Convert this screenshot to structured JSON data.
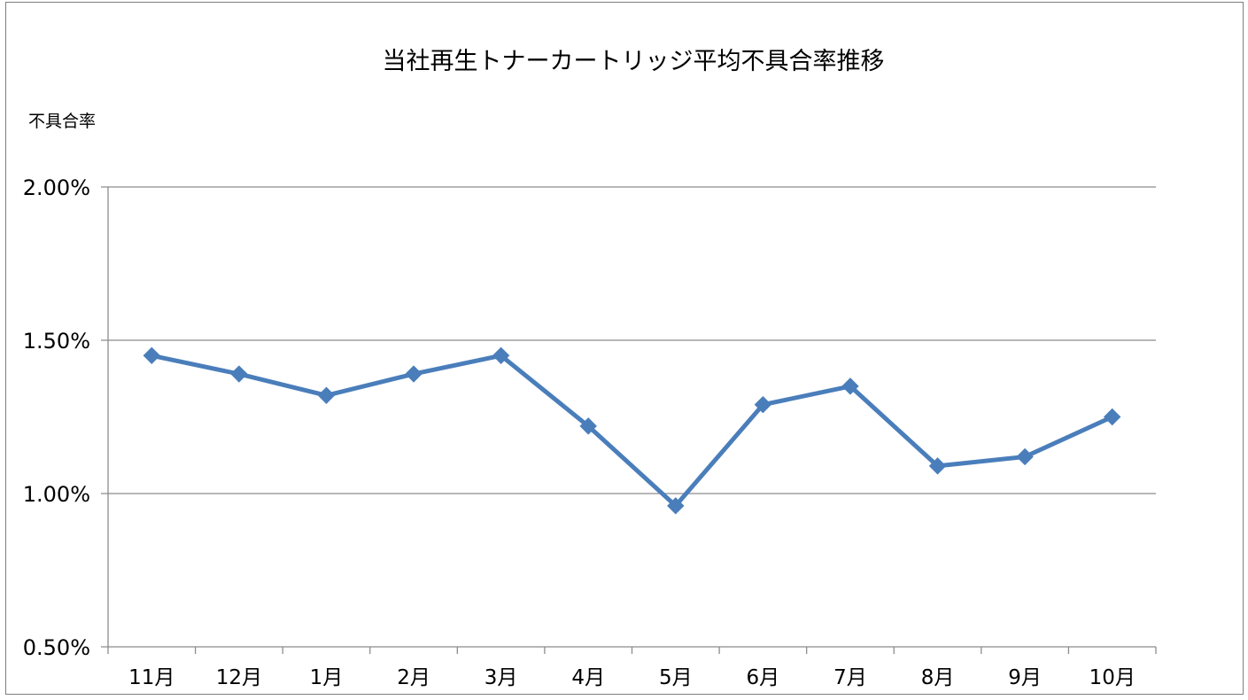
{
  "chart_data": {
    "type": "line",
    "title": "当社再生トナーカートリッジ平均不具合率推移",
    "ylabel": "不具合率",
    "xlabel": "",
    "categories": [
      "11月",
      "12月",
      "1月",
      "2月",
      "3月",
      "4月",
      "5月",
      "6月",
      "7月",
      "8月",
      "9月",
      "10月"
    ],
    "series": [
      {
        "values": [
          0.0145,
          0.0139,
          0.0132,
          0.0139,
          0.0145,
          0.0122,
          0.0096,
          0.0129,
          0.0135,
          0.0109,
          0.0112,
          0.0125
        ]
      }
    ],
    "ylim": [
      0.005,
      0.02
    ],
    "yticks": [
      0.005,
      0.01,
      0.015,
      0.02
    ],
    "ytick_labels": [
      "0.50%",
      "1.00%",
      "1.50%",
      "2.00%"
    ],
    "grid": true,
    "legend": "none",
    "marker": "diamond",
    "colors": {
      "series": "#4a7ebb",
      "gridline": "#8c8c8c",
      "axis": "#8c8c8c"
    }
  }
}
